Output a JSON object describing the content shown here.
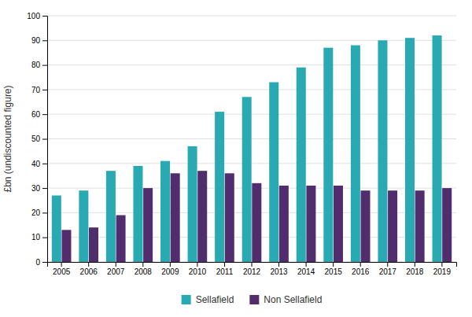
{
  "chart_data": {
    "type": "bar",
    "categories": [
      "2005",
      "2006",
      "2007",
      "2008",
      "2009",
      "2010",
      "2011",
      "2012",
      "2013",
      "2014",
      "2015",
      "2016",
      "2017",
      "2018",
      "2019"
    ],
    "series": [
      {
        "name": "Sellafield",
        "color": "#29aab3",
        "values": [
          27,
          29,
          37,
          39,
          41,
          47,
          61,
          67,
          73,
          79,
          87,
          88,
          90,
          91,
          92
        ]
      },
      {
        "name": "Non Sellafield",
        "color": "#522d6e",
        "values": [
          13,
          14,
          19,
          30,
          36,
          37,
          36,
          32,
          31,
          31,
          31,
          29,
          29,
          29,
          30
        ]
      }
    ],
    "ylabel": "£bn (undiscounted figure)",
    "ylim": [
      0,
      100
    ],
    "yticks": [
      0,
      10,
      20,
      30,
      40,
      50,
      60,
      70,
      80,
      90,
      100
    ],
    "grid": true,
    "legend": "bottom"
  }
}
